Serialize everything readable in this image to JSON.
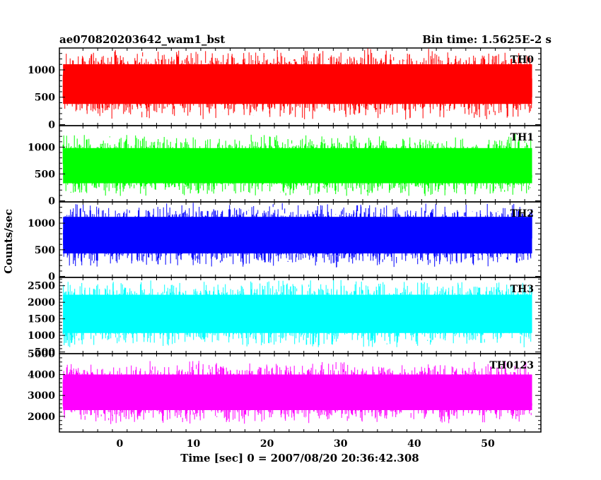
{
  "chart_data": {
    "type": "line",
    "title_left": "ae070820203642_wam1_bst",
    "title_right": "Bin time: 1.5625E-2 s",
    "xlabel": "Time [sec] 0 = 2007/08/20 20:36:42.308",
    "ylabel": "Counts/sec",
    "xlim": [
      -8.2,
      57.2
    ],
    "x_ticks": [
      "0",
      "10",
      "20",
      "30",
      "40",
      "50"
    ],
    "x_range": [
      -7.7,
      56.0
    ],
    "panels": [
      {
        "name": "TH0",
        "color": "#ff0000",
        "ylim": [
          -20,
          1400
        ],
        "y_ticks": [
          "0",
          "500",
          "1000"
        ],
        "band": [
          80,
          1400
        ]
      },
      {
        "name": "TH1",
        "color": "#00ff00",
        "ylim": [
          -20,
          1400
        ],
        "y_ticks": [
          "0",
          "500",
          "1000"
        ],
        "band": [
          60,
          1250
        ]
      },
      {
        "name": "TH2",
        "color": "#0000ff",
        "ylim": [
          -20,
          1400
        ],
        "y_ticks": [
          "0",
          "500",
          "1000"
        ],
        "band": [
          150,
          1400
        ]
      },
      {
        "name": "TH3",
        "color": "#00ffff",
        "ylim": [
          450,
          2750
        ],
        "y_ticks": [
          "500",
          "1000",
          "1500",
          "2000",
          "2500"
        ],
        "band": [
          600,
          2700
        ]
      },
      {
        "name": "TH0123",
        "color": "#ff00ff",
        "ylim": [
          1250,
          5000
        ],
        "y_ticks": [
          "2000",
          "3000",
          "4000",
          "5000"
        ],
        "band": [
          1600,
          4700
        ]
      }
    ]
  }
}
